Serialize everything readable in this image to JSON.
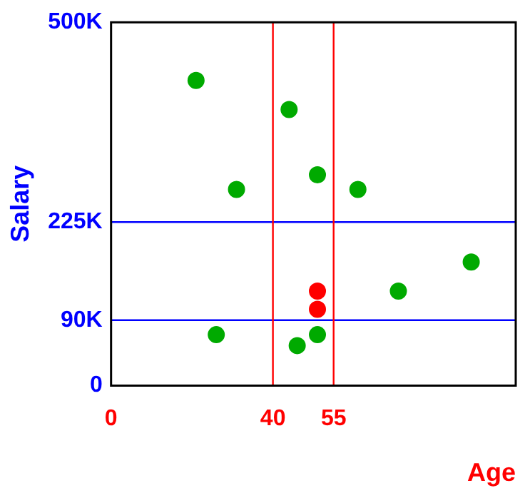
{
  "chart_data": {
    "type": "scatter",
    "xlabel": "Age",
    "ylabel": "Salary",
    "xlim": [
      0,
      100
    ],
    "xticks": [
      0,
      40,
      55
    ],
    "ylim": [
      0,
      500000
    ],
    "yticks": [
      {
        "value": 0,
        "label": "0"
      },
      {
        "value": 90000,
        "label": "90K"
      },
      {
        "value": 225000,
        "label": "225K"
      },
      {
        "value": 500000,
        "label": "500K"
      }
    ],
    "series": [
      {
        "color": "#00aa00",
        "x": [
          21,
          44,
          31,
          51,
          61,
          89,
          71,
          26,
          46,
          51
        ],
        "values": [
          420000,
          380000,
          270000,
          290000,
          270000,
          170000,
          130000,
          70000,
          55000,
          70000
        ]
      },
      {
        "color": "#ff0000",
        "x": [
          51,
          51
        ],
        "values": [
          130000,
          105000
        ]
      }
    ],
    "ref_lines": [
      {
        "axis": "y",
        "value": 225000,
        "color": "#0000ff"
      },
      {
        "axis": "y",
        "value": 90000,
        "color": "#0000ff"
      },
      {
        "axis": "x",
        "value": 40,
        "color": "#ff0000"
      },
      {
        "axis": "x",
        "value": 55,
        "color": "#ff0000"
      }
    ],
    "legend": false,
    "marker": "circle"
  }
}
